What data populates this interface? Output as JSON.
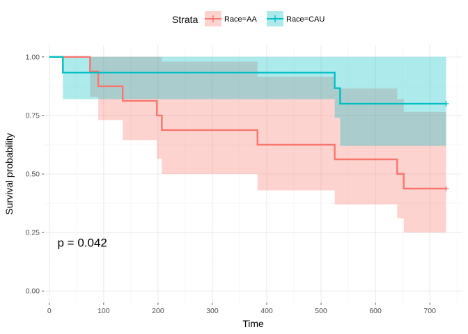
{
  "chart_data": {
    "type": "line",
    "subtype": "kaplan-meier",
    "xlabel": "Time",
    "ylabel": "Survival probability",
    "xlim": [
      -10,
      760
    ],
    "ylim": [
      -0.05,
      1.05
    ],
    "x_ticks": [
      0,
      100,
      200,
      300,
      400,
      500,
      600,
      700
    ],
    "x_tick_labels": [
      "0",
      "100",
      "200",
      "300",
      "400",
      "500",
      "600",
      "700"
    ],
    "y_ticks": [
      0,
      0.25,
      0.5,
      0.75,
      1.0
    ],
    "y_tick_labels": [
      "0.00",
      "0.25",
      "0.50",
      "0.75",
      "1.00"
    ],
    "grid": true,
    "legend": {
      "title": "Strata",
      "position": "top"
    },
    "annotation": "p = 0.042",
    "series": [
      {
        "name": "Race=AA",
        "color": "#F8766D",
        "steps": [
          [
            0,
            1.0
          ],
          [
            75,
            0.9375
          ],
          [
            90,
            0.875
          ],
          [
            135,
            0.8125
          ],
          [
            198,
            0.75
          ],
          [
            207,
            0.6875
          ],
          [
            383,
            0.625
          ],
          [
            525,
            0.5625
          ],
          [
            640,
            0.5
          ],
          [
            652,
            0.4375
          ],
          [
            730,
            0.4375
          ]
        ],
        "ci_lower": [
          1.0,
          0.83,
          0.73,
          0.645,
          0.565,
          0.5,
          0.43,
          0.37,
          0.31,
          0.25,
          0.25
        ],
        "ci_upper": [
          1.0,
          1.0,
          1.0,
          1.0,
          1.0,
          0.98,
          0.915,
          0.865,
          0.82,
          0.765,
          0.765
        ],
        "censored": [
          [
            730,
            0.4375
          ]
        ]
      },
      {
        "name": "Race=CAU",
        "color": "#00BFC4",
        "steps": [
          [
            0,
            1.0
          ],
          [
            25,
            0.9333
          ],
          [
            525,
            0.8667
          ],
          [
            535,
            0.8
          ],
          [
            730,
            0.8
          ]
        ],
        "ci_lower": [
          1.0,
          0.82,
          0.74,
          0.62,
          0.62
        ],
        "ci_upper": [
          1.0,
          1.0,
          1.0,
          1.0,
          1.0
        ],
        "censored": [
          [
            730,
            0.8
          ]
        ]
      }
    ]
  }
}
